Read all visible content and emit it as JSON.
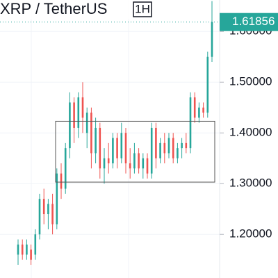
{
  "chart_data": {
    "type": "candlestick",
    "title": "XRP / TetherUS",
    "interval": "1H",
    "open": [
      1.16,
      1.18,
      1.16,
      1.17,
      1.16,
      1.2,
      1.27,
      1.24,
      1.26,
      1.22,
      1.32,
      1.29,
      1.37,
      1.46,
      1.41,
      1.47,
      1.4,
      1.44,
      1.36,
      1.41,
      1.33,
      1.35,
      1.34,
      1.39,
      1.35,
      1.4,
      1.34,
      1.33,
      1.36,
      1.33,
      1.35,
      1.32,
      1.41,
      1.35,
      1.38,
      1.36,
      1.39,
      1.35,
      1.37,
      1.38,
      1.37,
      1.47,
      1.43,
      1.45,
      1.44,
      1.55
    ],
    "high": [
      1.19,
      1.19,
      1.19,
      1.18,
      1.21,
      1.28,
      1.29,
      1.27,
      1.28,
      1.33,
      1.34,
      1.38,
      1.48,
      1.47,
      1.48,
      1.5,
      1.45,
      1.45,
      1.43,
      1.42,
      1.37,
      1.38,
      1.4,
      1.4,
      1.42,
      1.41,
      1.37,
      1.38,
      1.37,
      1.36,
      1.36,
      1.42,
      1.42,
      1.39,
      1.4,
      1.4,
      1.4,
      1.38,
      1.39,
      1.4,
      1.48,
      1.48,
      1.46,
      1.46,
      1.56,
      1.66
    ],
    "low": [
      1.14,
      1.15,
      1.15,
      1.14,
      1.15,
      1.19,
      1.22,
      1.21,
      1.2,
      1.21,
      1.27,
      1.28,
      1.35,
      1.38,
      1.39,
      1.4,
      1.37,
      1.33,
      1.34,
      1.31,
      1.3,
      1.32,
      1.33,
      1.33,
      1.34,
      1.32,
      1.31,
      1.32,
      1.32,
      1.31,
      1.31,
      1.31,
      1.33,
      1.34,
      1.34,
      1.35,
      1.34,
      1.34,
      1.35,
      1.36,
      1.36,
      1.42,
      1.42,
      1.43,
      1.43,
      1.54
    ],
    "close": [
      1.18,
      1.16,
      1.18,
      1.15,
      1.2,
      1.27,
      1.24,
      1.26,
      1.22,
      1.32,
      1.29,
      1.37,
      1.46,
      1.41,
      1.47,
      1.43,
      1.44,
      1.36,
      1.41,
      1.33,
      1.35,
      1.34,
      1.39,
      1.35,
      1.4,
      1.34,
      1.33,
      1.36,
      1.33,
      1.35,
      1.32,
      1.41,
      1.35,
      1.38,
      1.36,
      1.39,
      1.35,
      1.37,
      1.38,
      1.37,
      1.47,
      1.43,
      1.45,
      1.44,
      1.55,
      1.61856
    ],
    "up_color": "#26a69a",
    "down_color": "#ef5350",
    "box_range": [
      1.303,
      1.423
    ],
    "ylim": [
      1.114,
      1.662
    ],
    "yticks": [
      {
        "value": 1.2,
        "label": "1.20000"
      },
      {
        "value": 1.3,
        "label": "1.30000"
      },
      {
        "value": 1.4,
        "label": "1.40000"
      },
      {
        "value": 1.5,
        "label": "1.50000"
      },
      {
        "value": 1.6,
        "label": "1.60000"
      }
    ],
    "grid": true
  }
}
